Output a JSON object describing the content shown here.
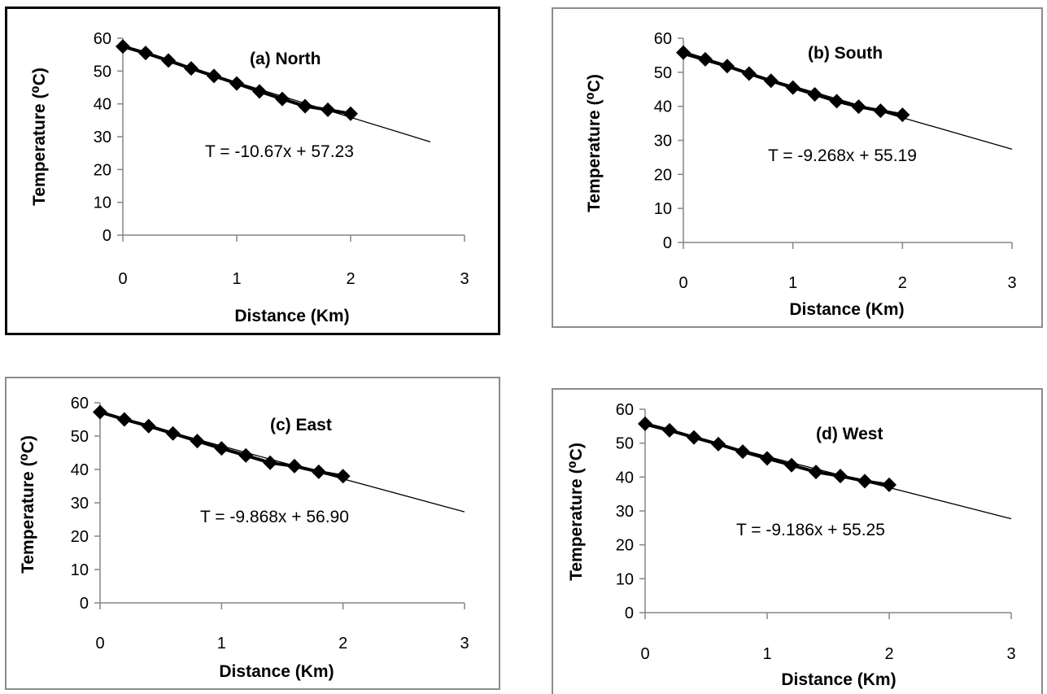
{
  "chart_data": [
    {
      "type": "scatter",
      "panel": "a",
      "title": "(a)  North",
      "xlabel": "Distance (Km)",
      "ylabel": "Temperature (⁰C)",
      "xlim": [
        0,
        3
      ],
      "ylim": [
        0,
        60
      ],
      "xticks": [
        "0",
        "1",
        "2",
        "3"
      ],
      "yticks": [
        "0",
        "10",
        "20",
        "30",
        "40",
        "50",
        "60"
      ],
      "grid": false,
      "legend": "none",
      "series": [
        {
          "marker": "diamond",
          "color": "#000000",
          "x": [
            0,
            0.2,
            0.4,
            0.6,
            0.8,
            1.0,
            1.2,
            1.4,
            1.6,
            1.8,
            2.0
          ],
          "y": [
            57.5,
            55.5,
            53.2,
            50.8,
            48.5,
            46.2,
            43.8,
            41.5,
            39.3,
            38.2,
            37.0
          ]
        }
      ],
      "trendline": {
        "slope": -10.67,
        "intercept": 57.23,
        "x_range": [
          0,
          2.7
        ],
        "equation": "T = -10.67x + 57.23"
      }
    },
    {
      "type": "scatter",
      "panel": "b",
      "title": "(b)  South",
      "xlabel": "Distance (Km)",
      "ylabel": "Temperature (⁰C)",
      "xlim": [
        0,
        3
      ],
      "ylim": [
        0,
        60
      ],
      "xticks": [
        "0",
        "1",
        "2",
        "3"
      ],
      "yticks": [
        "0",
        "10",
        "20",
        "30",
        "40",
        "50",
        "60"
      ],
      "grid": false,
      "legend": "none",
      "series": [
        {
          "marker": "diamond",
          "color": "#000000",
          "x": [
            0,
            0.2,
            0.4,
            0.6,
            0.8,
            1.0,
            1.2,
            1.4,
            1.6,
            1.8,
            2.0
          ],
          "y": [
            55.8,
            53.8,
            51.8,
            49.6,
            47.5,
            45.5,
            43.5,
            41.5,
            39.9,
            38.7,
            37.5
          ]
        }
      ],
      "trendline": {
        "slope": -9.268,
        "intercept": 55.19,
        "x_range": [
          0,
          3
        ],
        "equation": "T = -9.268x + 55.19"
      }
    },
    {
      "type": "scatter",
      "panel": "c",
      "title": "(c)  East",
      "xlabel": "Distance (Km)",
      "ylabel": "Temperature (⁰C)",
      "xlim": [
        0,
        3
      ],
      "ylim": [
        0,
        60
      ],
      "xticks": [
        "0",
        "1",
        "2",
        "3"
      ],
      "yticks": [
        "0",
        "10",
        "20",
        "30",
        "40",
        "50",
        "60"
      ],
      "grid": false,
      "legend": "none",
      "series": [
        {
          "marker": "diamond",
          "color": "#000000",
          "x": [
            0,
            0.2,
            0.4,
            0.6,
            0.8,
            1.0,
            1.2,
            1.4,
            1.6,
            1.8,
            2.0
          ],
          "y": [
            57.2,
            55.0,
            53.0,
            50.8,
            48.5,
            46.3,
            44.2,
            42.0,
            41.0,
            39.3,
            38.0
          ]
        }
      ],
      "trendline": {
        "slope": -9.868,
        "intercept": 56.9,
        "x_range": [
          0,
          3
        ],
        "equation": "T = -9.868x + 56.90"
      }
    },
    {
      "type": "scatter",
      "panel": "d",
      "title": "(d)  West",
      "xlabel": "Distance (Km)",
      "ylabel": "Temperature (⁰C)",
      "xlim": [
        0,
        3
      ],
      "ylim": [
        0,
        60
      ],
      "xticks": [
        "0",
        "1",
        "2",
        "3"
      ],
      "yticks": [
        "0",
        "10",
        "20",
        "30",
        "40",
        "50",
        "60"
      ],
      "grid": false,
      "legend": "none",
      "series": [
        {
          "marker": "diamond",
          "color": "#000000",
          "x": [
            0,
            0.2,
            0.4,
            0.6,
            0.8,
            1.0,
            1.2,
            1.4,
            1.6,
            1.8,
            2.0
          ],
          "y": [
            55.7,
            53.8,
            51.7,
            49.7,
            47.5,
            45.5,
            43.5,
            41.5,
            40.3,
            38.8,
            37.7
          ]
        }
      ],
      "trendline": {
        "slope": -9.186,
        "intercept": 55.25,
        "x_range": [
          0,
          3
        ],
        "equation": "T = -9.186x + 55.25"
      }
    }
  ]
}
